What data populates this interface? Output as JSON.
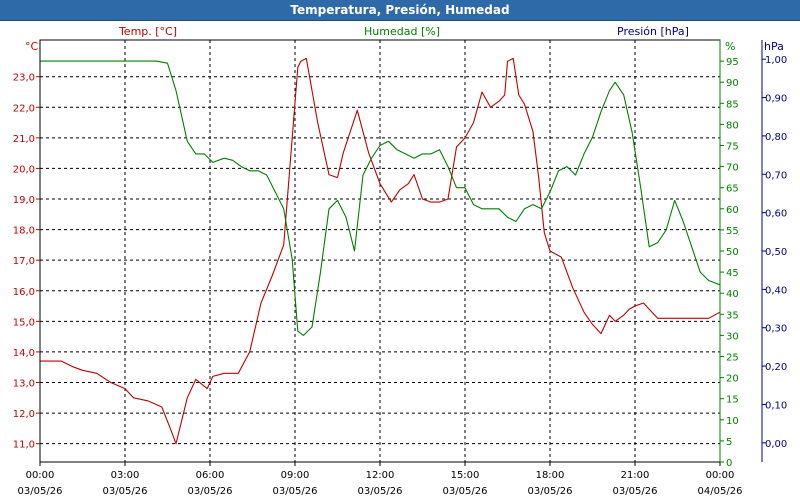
{
  "window": {
    "title": "Temperatura, Presión, Humedad"
  },
  "colors": {
    "temperature": "#c00000",
    "humidity": "#008000",
    "pressure": "#00008b",
    "titlebar": "#2f6aa8"
  },
  "chart_data": {
    "type": "line",
    "title": "Temperatura, Presión, Humedad",
    "grid": true,
    "x_ticks": [
      {
        "time": "00:00",
        "date": "03/05/26"
      },
      {
        "time": "03:00",
        "date": "03/05/26"
      },
      {
        "time": "06:00",
        "date": "03/05/26"
      },
      {
        "time": "09:00",
        "date": "03/05/26"
      },
      {
        "time": "12:00",
        "date": "03/05/26"
      },
      {
        "time": "15:00",
        "date": "03/05/26"
      },
      {
        "time": "18:00",
        "date": "03/05/26"
      },
      {
        "time": "21:00",
        "date": "03/05/26"
      },
      {
        "time": "00:00",
        "date": "04/05/26"
      }
    ],
    "x_range_hours": [
      0,
      24
    ],
    "axes": {
      "left": {
        "unit": "°C",
        "label": "Temp. [°C]",
        "range": [
          10.4,
          24.2
        ],
        "ticks": [
          "11,0",
          "12,0",
          "13,0",
          "14,0",
          "15,0",
          "16,0",
          "17,0",
          "18,0",
          "19,0",
          "20,0",
          "21,0",
          "22,0",
          "23,0"
        ]
      },
      "right_inner": {
        "unit": "%",
        "label": "Humedad [%]",
        "range": [
          0,
          100
        ],
        "ticks": [
          "0",
          "5",
          "10",
          "15",
          "20",
          "25",
          "30",
          "35",
          "40",
          "45",
          "50",
          "55",
          "60",
          "65",
          "70",
          "75",
          "80",
          "85",
          "90",
          "95"
        ]
      },
      "right_outer": {
        "unit": "hPa",
        "label": "Presión [hPa]",
        "range": [
          -0.05,
          1.05
        ],
        "ticks": [
          "0,00",
          "0,10",
          "0,20",
          "0,30",
          "0,40",
          "0,50",
          "0,60",
          "0,70",
          "0,80",
          "0,90",
          "1,00"
        ]
      }
    },
    "series": [
      {
        "name": "Temp. [°C]",
        "axis": "left",
        "color": "#c00000",
        "x": [
          0,
          0.75,
          1.2,
          1.5,
          2,
          2.5,
          3,
          3.3,
          3.8,
          4.3,
          4.6,
          4.8,
          5.2,
          5.5,
          5.9,
          6.1,
          6.5,
          7,
          7.4,
          7.8,
          8.2,
          8.6,
          8.9,
          9.1,
          9.2,
          9.4,
          9.8,
          10.2,
          10.5,
          10.7,
          11.2,
          11.6,
          12,
          12.4,
          12.7,
          13,
          13.2,
          13.5,
          13.8,
          14.1,
          14.4,
          14.7,
          15,
          15.3,
          15.6,
          15.9,
          16.2,
          16.4,
          16.5,
          16.7,
          16.9,
          17.1,
          17.4,
          17.6,
          17.8,
          18,
          18.4,
          18.8,
          19.2,
          19.5,
          19.8,
          20.1,
          20.3,
          20.6,
          20.8,
          21,
          21.3,
          21.6,
          21.8,
          22,
          22.4,
          22.8,
          23.2,
          23.6,
          24
        ],
        "values": [
          13.7,
          13.7,
          13.5,
          13.4,
          13.3,
          13,
          12.8,
          12.5,
          12.4,
          12.2,
          11.5,
          11,
          12.5,
          13.1,
          12.8,
          13.2,
          13.3,
          13.3,
          14,
          15.6,
          16.5,
          17.5,
          21,
          23.3,
          23.5,
          23.6,
          21.5,
          19.8,
          19.7,
          20.5,
          21.9,
          20.5,
          19.5,
          18.9,
          19.3,
          19.5,
          19.8,
          19,
          18.9,
          18.9,
          19,
          20.7,
          21,
          21.5,
          22.5,
          22,
          22.2,
          22.4,
          23.5,
          23.6,
          22.4,
          22.1,
          21.2,
          19.7,
          17.9,
          17.3,
          17.1,
          16.1,
          15.3,
          14.9,
          14.6,
          15.2,
          15,
          15.2,
          15.4,
          15.5,
          15.6,
          15.3,
          15.1,
          15.1,
          15.1,
          15.1,
          15.1,
          15.1,
          15.3
        ]
      },
      {
        "name": "Humedad [%]",
        "axis": "right_inner",
        "color": "#008000",
        "x": [
          0,
          2,
          3,
          3.6,
          4.1,
          4.5,
          4.8,
          5.2,
          5.5,
          5.8,
          6.1,
          6.5,
          6.8,
          7.1,
          7.4,
          7.7,
          8,
          8.3,
          8.6,
          8.9,
          9.1,
          9.3,
          9.6,
          9.9,
          10.2,
          10.5,
          10.8,
          11.1,
          11.4,
          11.7,
          12,
          12.3,
          12.6,
          12.9,
          13.2,
          13.5,
          13.8,
          14.1,
          14.4,
          14.7,
          15,
          15.3,
          15.6,
          15.9,
          16.2,
          16.5,
          16.8,
          17.1,
          17.4,
          17.7,
          18,
          18.3,
          18.6,
          18.9,
          19.2,
          19.5,
          19.8,
          20.1,
          20.3,
          20.6,
          20.9,
          21.2,
          21.5,
          21.8,
          22.1,
          22.4,
          22.7,
          23,
          23.3,
          23.6,
          24
        ],
        "values": [
          95,
          95,
          95,
          95,
          95,
          94.5,
          88,
          76,
          73,
          73,
          71,
          72,
          71.5,
          70,
          69,
          69,
          68,
          64,
          60,
          48,
          31,
          30,
          32,
          45,
          60,
          62,
          58,
          50,
          68,
          72,
          75,
          76,
          74,
          73,
          72,
          73,
          73,
          74,
          70,
          65,
          65,
          61,
          60,
          60,
          60,
          58,
          57,
          60,
          61,
          60,
          64,
          69,
          70,
          68,
          73,
          77,
          83,
          88,
          90,
          87,
          78,
          65,
          51,
          52,
          55,
          62,
          57,
          51,
          45,
          43,
          42
        ]
      }
    ]
  }
}
